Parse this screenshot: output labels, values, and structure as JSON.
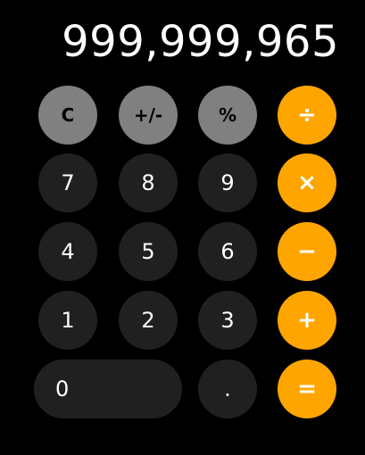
{
  "display": {
    "value": "999,999,965"
  },
  "keys": {
    "clear": "C",
    "sign": "+/-",
    "percent": "%",
    "divide": "÷",
    "seven": "7",
    "eight": "8",
    "nine": "9",
    "multiply": "×",
    "four": "4",
    "five": "5",
    "six": "6",
    "subtract": "−",
    "one": "1",
    "two": "2",
    "three": "3",
    "add": "+",
    "zero": "0",
    "decimal": ".",
    "equals": "="
  },
  "colors": {
    "background": "#000000",
    "function_key": "#808080",
    "number_key": "#202020",
    "operator_key": "#ffa500",
    "display_text": "#ffffff"
  }
}
